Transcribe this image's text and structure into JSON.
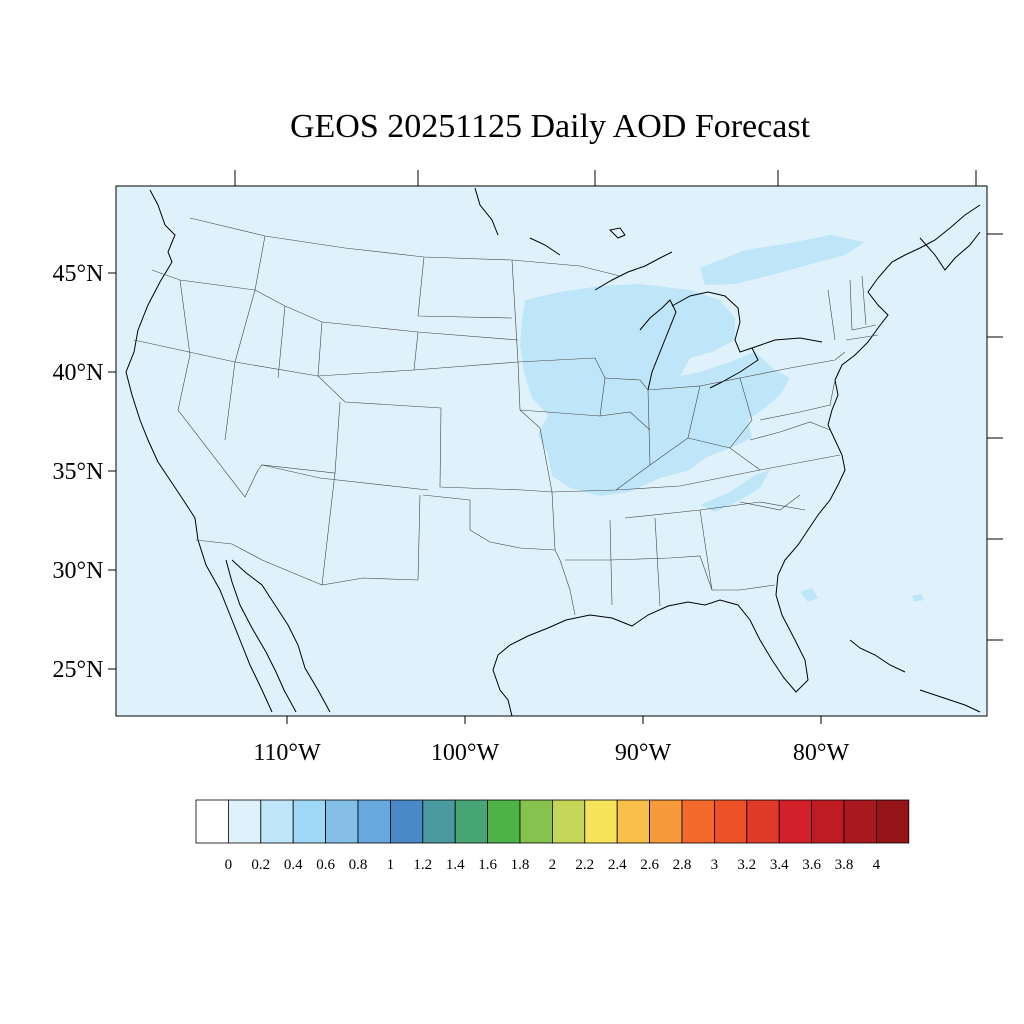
{
  "title": "GEOS 20251125 Daily AOD Forecast",
  "map": {
    "background_color": "#dff2fb",
    "enhanced_color": "#bfe6f8",
    "lat_labels": [
      "45°N",
      "40°N",
      "35°N",
      "30°N",
      "25°N"
    ],
    "lon_labels": [
      "110°W",
      "100°W",
      "90°W",
      "80°W"
    ]
  },
  "colorbar": {
    "labels": [
      "0",
      "0.2",
      "0.4",
      "0.6",
      "0.8",
      "1",
      "1.2",
      "1.4",
      "1.6",
      "1.8",
      "2",
      "2.2",
      "2.4",
      "2.6",
      "2.8",
      "3",
      "3.2",
      "3.4",
      "3.6",
      "3.8",
      "4"
    ],
    "colors": [
      "#ffffff",
      "#dff2fb",
      "#bfe6f8",
      "#9fd8f4",
      "#83bfe6",
      "#68a8dc",
      "#4a88c8",
      "#4a9aa0",
      "#48a676",
      "#4db348",
      "#86c24e",
      "#c4d658",
      "#f8e45a",
      "#f8bf4a",
      "#f79a3c",
      "#f46a2c",
      "#ec5128",
      "#e03a28",
      "#d4202a",
      "#bf1b24",
      "#a9171f",
      "#951418"
    ]
  }
}
